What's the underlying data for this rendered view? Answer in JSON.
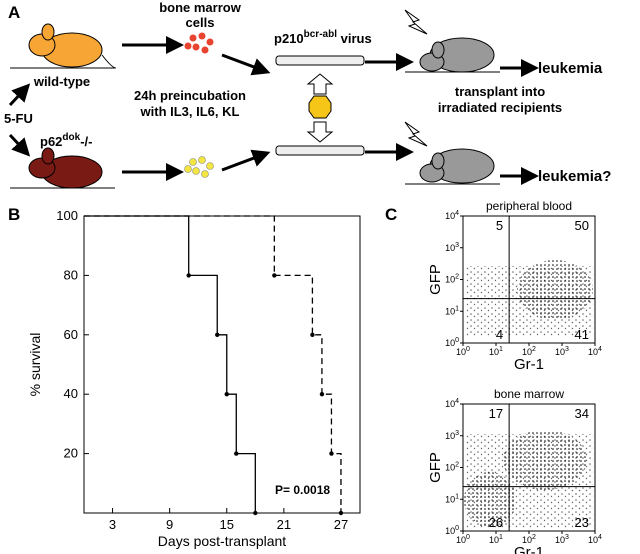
{
  "panel_a": {
    "label": "A",
    "bone_marrow_cells": [
      "bone marrow",
      "cells"
    ],
    "virus": {
      "base": "p210",
      "sup": "bcr-abl",
      "rest": " virus"
    },
    "wild_type": "wild-type",
    "five_fu": "5-FU",
    "preincubation": [
      "24h preincubation",
      "with IL3, IL6, KL"
    ],
    "transplant": [
      "transplant into",
      "irradiated recipients"
    ],
    "leukemia": "leukemia",
    "knockout": {
      "base": "p62",
      "sup": "dok",
      "rest": "-/-"
    },
    "leukemia_q": "leukemia?"
  },
  "chart_data": [
    {
      "type": "step",
      "panel_label": "B",
      "xlabel": "Days post-transplant",
      "ylabel": "% survival",
      "xlim": [
        0,
        29
      ],
      "ylim": [
        0,
        100
      ],
      "xticks": [
        3,
        9,
        15,
        21,
        27
      ],
      "yticks": [
        20,
        40,
        60,
        80,
        100
      ],
      "annotation": "P= 0.0018",
      "series": [
        {
          "color": "#000000",
          "linestyle": "solid",
          "x": [
            0,
            11,
            14,
            15,
            16,
            18
          ],
          "values": [
            100,
            80,
            60,
            40,
            20,
            0
          ]
        },
        {
          "color": "#000000",
          "linestyle": "dashed",
          "x": [
            0,
            20,
            24,
            25,
            26,
            27
          ],
          "values": [
            100,
            80,
            60,
            40,
            20,
            0
          ]
        }
      ]
    },
    {
      "type": "flow",
      "panel_label": "C",
      "title": "peripheral blood",
      "xlabel": "Gr-1",
      "ylabel": "GFP",
      "log": true,
      "xlim": [
        1,
        10000
      ],
      "ylim": [
        1,
        10000
      ],
      "xticks": [
        {
          "value": 1,
          "label": "10",
          "sup": "0"
        },
        {
          "value": 10,
          "label": "10",
          "sup": "1"
        },
        {
          "value": 100,
          "label": "10",
          "sup": "2"
        },
        {
          "value": 1000,
          "label": "10",
          "sup": "3"
        },
        {
          "value": 10000,
          "label": "10",
          "sup": "4"
        }
      ],
      "yticks": [
        {
          "value": 1,
          "label": "10",
          "sup": "0"
        },
        {
          "value": 10,
          "label": "10",
          "sup": "1"
        },
        {
          "value": 100,
          "label": "10",
          "sup": "2"
        },
        {
          "value": 1000,
          "label": "10",
          "sup": "3"
        },
        {
          "value": 10000,
          "label": "10",
          "sup": "4"
        }
      ],
      "gates": [
        25,
        25
      ],
      "quadrants": [
        5,
        50,
        4,
        41
      ]
    },
    {
      "type": "flow",
      "title": "bone marrow",
      "xlabel": "Gr-1",
      "ylabel": "GFP",
      "log": true,
      "xlim": [
        1,
        10000
      ],
      "ylim": [
        1,
        10000
      ],
      "xticks": [
        {
          "value": 1,
          "label": "10",
          "sup": "0"
        },
        {
          "value": 10,
          "label": "10",
          "sup": "1"
        },
        {
          "value": 100,
          "label": "10",
          "sup": "2"
        },
        {
          "value": 1000,
          "label": "10",
          "sup": "3"
        },
        {
          "value": 10000,
          "label": "10",
          "sup": "4"
        }
      ],
      "yticks": [
        {
          "value": 1,
          "label": "10",
          "sup": "0"
        },
        {
          "value": 10,
          "label": "10",
          "sup": "1"
        },
        {
          "value": 100,
          "label": "10",
          "sup": "2"
        },
        {
          "value": 1000,
          "label": "10",
          "sup": "3"
        },
        {
          "value": 10000,
          "label": "10",
          "sup": "4"
        }
      ],
      "gates": [
        25,
        25
      ],
      "quadrants": [
        17,
        34,
        26,
        23
      ]
    }
  ]
}
